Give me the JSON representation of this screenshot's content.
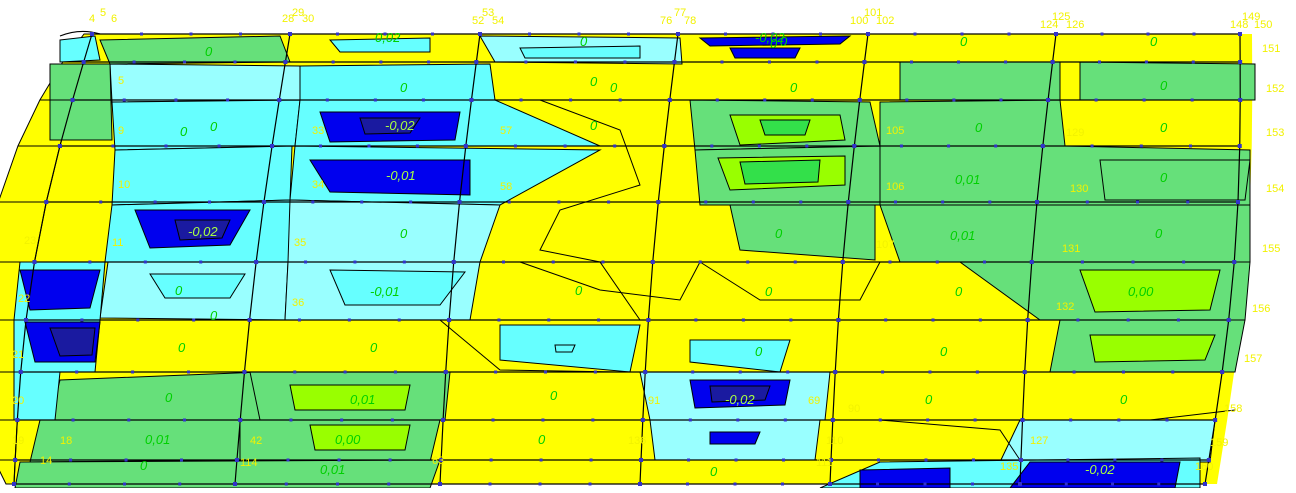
{
  "colors": {
    "yellow": "#ffff00",
    "light_green": "#66e07a",
    "green": "#33e04a",
    "lime": "#99ff00",
    "cyan": "#66ffff",
    "light_cyan": "#99ffff",
    "blue": "#0000ee",
    "dark_blue": "#1a1aa0",
    "grid": "#000000",
    "node": "#3333cc",
    "node_label": "#f2f200",
    "value_label": "#00d000"
  },
  "node_labels": {
    "top": [
      "4",
      "5",
      "6",
      "28",
      "29",
      "30",
      "52",
      "53",
      "54",
      "76",
      "77",
      "78",
      "100",
      "101",
      "102",
      "124",
      "125",
      "126",
      "148",
      "149",
      "150"
    ],
    "right": [
      "151",
      "152",
      "153",
      "154",
      "155",
      "156",
      "157",
      "158",
      "159",
      "160"
    ],
    "left": [
      "23",
      "22",
      "21",
      "20",
      "19"
    ],
    "interior": [
      "5",
      "9",
      "10",
      "11",
      "33",
      "34",
      "35",
      "36",
      "57",
      "58",
      "105",
      "106",
      "107",
      "129",
      "130",
      "131",
      "132",
      "18",
      "14",
      "42",
      "63",
      "127",
      "110",
      "111",
      "135",
      "136",
      "69",
      "90",
      "114",
      "91"
    ]
  },
  "value_labels": [
    "0",
    "0,02",
    "-0,02",
    "-0,01",
    "0,01",
    "0,00"
  ]
}
